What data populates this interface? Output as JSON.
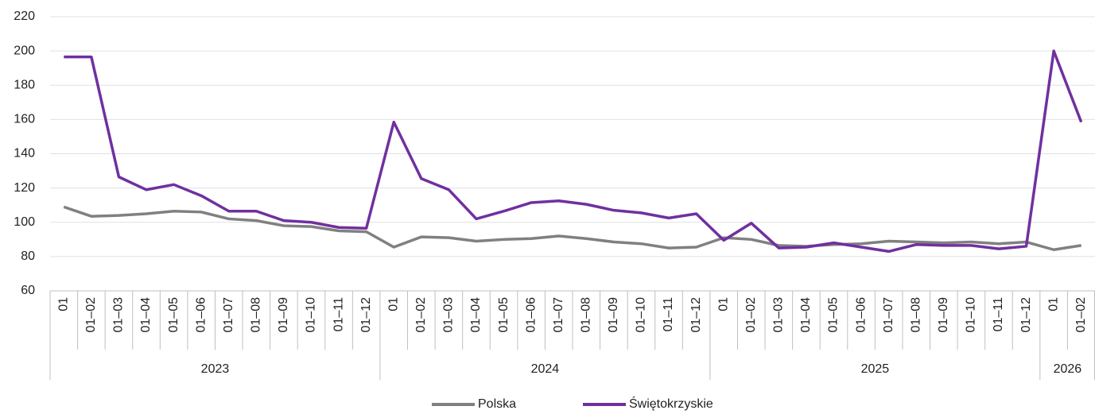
{
  "chart_data": {
    "type": "line",
    "groups": [
      {
        "label": "2023",
        "categories": [
          "01",
          "01–02",
          "01–03",
          "01–04",
          "01–05",
          "01–06",
          "01–07",
          "01–08",
          "01–09",
          "01–10",
          "01–11",
          "01–12"
        ]
      },
      {
        "label": "2024",
        "categories": [
          "01",
          "01–02",
          "01–03",
          "01–04",
          "01–05",
          "01–06",
          "01–07",
          "01–08",
          "01–09",
          "01–10",
          "01–11",
          "01–12"
        ]
      },
      {
        "label": "2025",
        "categories": [
          "01",
          "01–02",
          "01–03",
          "01–04",
          "01–05",
          "01–06",
          "01–07",
          "01–08",
          "01–09",
          "01–10",
          "01–11",
          "01–12"
        ]
      },
      {
        "label": "2026",
        "categories": [
          "01",
          "01–02"
        ]
      }
    ],
    "series": [
      {
        "name": "Polska",
        "color": "#808080",
        "values": [
          109,
          103.5,
          104,
          105,
          106.5,
          106,
          102,
          101,
          98,
          97.5,
          95,
          94.5,
          85.5,
          91.5,
          91,
          89,
          90,
          90.5,
          92,
          90.5,
          88.5,
          87.5,
          85,
          85.5,
          91,
          90,
          86.5,
          86,
          87,
          87.5,
          89,
          88.5,
          88,
          88.5,
          87.5,
          88.5,
          84,
          86.5
        ]
      },
      {
        "name": "Świętokrzyskie",
        "color": "#7030a0",
        "values": [
          196.5,
          196.5,
          126.5,
          119,
          122,
          115.5,
          106.5,
          106.5,
          101,
          100,
          97,
          96.5,
          158.5,
          125.5,
          119,
          102,
          106.5,
          111.5,
          112.5,
          110.5,
          107,
          105.5,
          102.5,
          105,
          89.5,
          99.5,
          85,
          85.5,
          88,
          85.5,
          83,
          87,
          86.5,
          86.5,
          84.5,
          86,
          200,
          158.5
        ]
      }
    ],
    "ylim": [
      60,
      220
    ],
    "yticks": [
      60,
      80,
      100,
      120,
      140,
      160,
      180,
      200,
      220
    ],
    "grid": true,
    "legend": "bottom"
  }
}
